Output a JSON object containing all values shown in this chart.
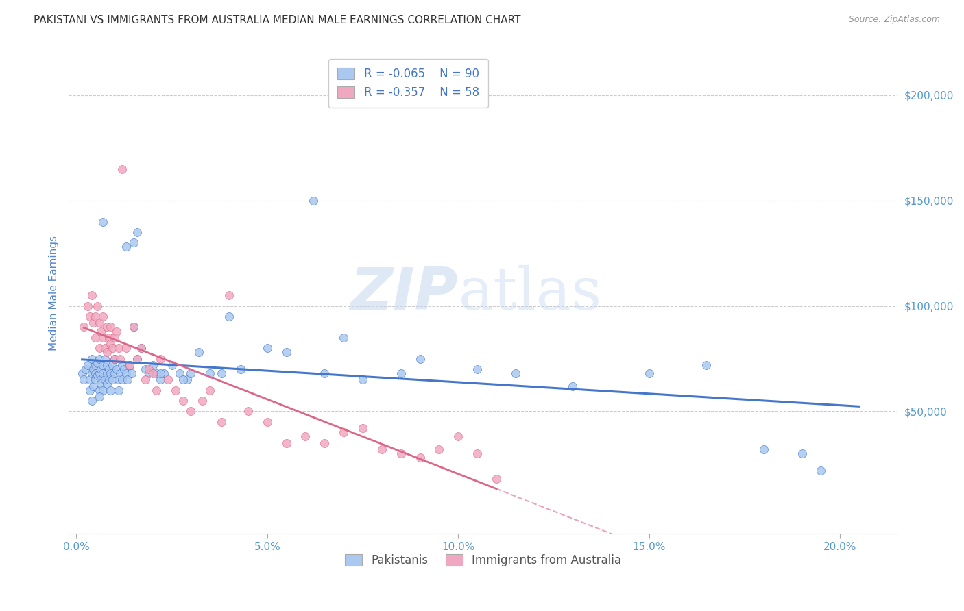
{
  "title": "PAKISTANI VS IMMIGRANTS FROM AUSTRALIA MEDIAN MALE EARNINGS CORRELATION CHART",
  "source": "Source: ZipAtlas.com",
  "ylabel": "Median Male Earnings",
  "y_tick_labels": [
    "$50,000",
    "$100,000",
    "$150,000",
    "$200,000"
  ],
  "y_tick_values": [
    50000,
    100000,
    150000,
    200000
  ],
  "x_tick_labels": [
    "0.0%",
    "5.0%",
    "10.0%",
    "15.0%",
    "20.0%"
  ],
  "x_tick_values": [
    0.0,
    5.0,
    10.0,
    15.0,
    20.0
  ],
  "xlim": [
    -0.2,
    21.5
  ],
  "ylim": [
    -8000,
    220000
  ],
  "series1_label": "Pakistanis",
  "series2_label": "Immigrants from Australia",
  "series1_color": "#aac8f0",
  "series2_color": "#f0a8c0",
  "series1_R": "-0.065",
  "series1_N": "90",
  "series2_R": "-0.357",
  "series2_N": "58",
  "trendline1_color": "#4477cc",
  "trendline2_color": "#dd6688",
  "watermark_zip": "ZIP",
  "watermark_atlas": "atlas",
  "background_color": "#ffffff",
  "grid_color": "#cccccc",
  "title_color": "#333333",
  "ylabel_color": "#5588cc",
  "tick_label_color": "#5599cc",
  "legend_text_color": "#4477cc",
  "source_color": "#999999",
  "series1_x": [
    0.15,
    0.2,
    0.25,
    0.3,
    0.35,
    0.35,
    0.4,
    0.4,
    0.45,
    0.45,
    0.5,
    0.5,
    0.5,
    0.55,
    0.55,
    0.6,
    0.6,
    0.6,
    0.65,
    0.65,
    0.65,
    0.7,
    0.7,
    0.7,
    0.75,
    0.75,
    0.8,
    0.8,
    0.8,
    0.85,
    0.85,
    0.9,
    0.9,
    0.95,
    0.95,
    1.0,
    1.0,
    1.05,
    1.1,
    1.1,
    1.15,
    1.2,
    1.2,
    1.25,
    1.3,
    1.35,
    1.4,
    1.45,
    1.5,
    1.6,
    1.7,
    1.8,
    1.9,
    2.0,
    2.1,
    2.2,
    2.3,
    2.5,
    2.7,
    2.9,
    3.2,
    3.5,
    3.8,
    4.0,
    4.3,
    5.0,
    5.5,
    6.2,
    7.0,
    7.5,
    8.5,
    9.0,
    10.5,
    11.5,
    13.0,
    15.0,
    16.5,
    18.0,
    19.0,
    19.5,
    2.8,
    3.0,
    1.5,
    0.7,
    1.3,
    1.6,
    2.2,
    6.5,
    0.4,
    0.6
  ],
  "series1_y": [
    68000,
    65000,
    70000,
    72000,
    65000,
    60000,
    68000,
    75000,
    62000,
    70000,
    65000,
    68000,
    72000,
    67000,
    73000,
    60000,
    68000,
    75000,
    65000,
    70000,
    63000,
    68000,
    72000,
    60000,
    65000,
    75000,
    68000,
    63000,
    72000,
    70000,
    65000,
    68000,
    60000,
    65000,
    72000,
    68000,
    75000,
    70000,
    65000,
    60000,
    68000,
    72000,
    65000,
    70000,
    68000,
    65000,
    72000,
    68000,
    90000,
    75000,
    80000,
    70000,
    68000,
    72000,
    68000,
    65000,
    68000,
    72000,
    68000,
    65000,
    78000,
    68000,
    68000,
    95000,
    70000,
    80000,
    78000,
    150000,
    85000,
    65000,
    68000,
    75000,
    70000,
    68000,
    62000,
    68000,
    72000,
    32000,
    30000,
    22000,
    65000,
    68000,
    130000,
    140000,
    128000,
    135000,
    68000,
    68000,
    55000,
    57000
  ],
  "series2_x": [
    0.2,
    0.3,
    0.35,
    0.4,
    0.45,
    0.5,
    0.5,
    0.55,
    0.6,
    0.6,
    0.65,
    0.7,
    0.7,
    0.75,
    0.8,
    0.8,
    0.85,
    0.9,
    0.9,
    0.95,
    1.0,
    1.0,
    1.05,
    1.1,
    1.15,
    1.2,
    1.3,
    1.4,
    1.5,
    1.6,
    1.7,
    1.8,
    1.9,
    2.0,
    2.1,
    2.2,
    2.4,
    2.6,
    2.8,
    3.0,
    3.3,
    3.5,
    3.8,
    4.0,
    4.5,
    5.0,
    5.5,
    6.0,
    6.5,
    7.0,
    7.5,
    8.0,
    8.5,
    9.0,
    9.5,
    10.0,
    10.5,
    11.0
  ],
  "series2_y": [
    90000,
    100000,
    95000,
    105000,
    92000,
    85000,
    95000,
    100000,
    80000,
    92000,
    88000,
    85000,
    95000,
    80000,
    90000,
    78000,
    85000,
    82000,
    90000,
    80000,
    85000,
    75000,
    88000,
    80000,
    75000,
    165000,
    80000,
    72000,
    90000,
    75000,
    80000,
    65000,
    70000,
    68000,
    60000,
    75000,
    65000,
    60000,
    55000,
    50000,
    55000,
    60000,
    45000,
    105000,
    50000,
    45000,
    35000,
    38000,
    35000,
    40000,
    42000,
    32000,
    30000,
    28000,
    32000,
    38000,
    30000,
    18000
  ],
  "trendline1_x_start": 0.15,
  "trendline1_x_end": 20.5,
  "trendline2_x_end_solid": 11.0,
  "trendline2_x_end_dashed": 20.5
}
